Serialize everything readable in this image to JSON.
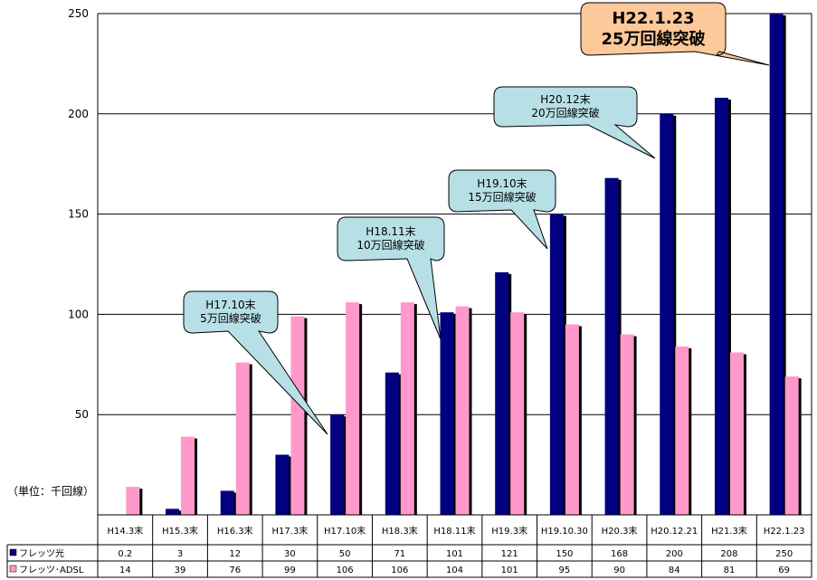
{
  "chart_data": {
    "type": "bar",
    "ylim": [
      0,
      250
    ],
    "yticks": [
      50,
      100,
      150,
      200,
      250
    ],
    "grid": true,
    "unit_label": "（単位：千回線）",
    "categories": [
      "H14.3末",
      "H15.3末",
      "H16.3末",
      "H17.3末",
      "H17.10末",
      "H18.3末",
      "H18.11末",
      "H19.3末",
      "H19.10.30",
      "H20.3末",
      "H20.12.21",
      "H21.3末",
      "H22.1.23"
    ],
    "series": [
      {
        "name": "フレッツ光",
        "color": "#000080",
        "values": [
          0.2,
          3,
          12,
          30,
          50,
          71,
          101,
          121,
          150,
          168,
          200,
          208,
          250
        ],
        "labels": [
          "0.2",
          "3",
          "12",
          "30",
          "50",
          "71",
          "101",
          "121",
          "150",
          "168",
          "200",
          "208",
          "250"
        ]
      },
      {
        "name": "フレッツ･ADSL",
        "color": "#ff99cc",
        "values": [
          14,
          39,
          76,
          99,
          106,
          106,
          104,
          101,
          95,
          90,
          84,
          81,
          69
        ],
        "labels": [
          "14",
          "39",
          "76",
          "99",
          "106",
          "106",
          "104",
          "101",
          "95",
          "90",
          "84",
          "81",
          "69"
        ]
      }
    ],
    "annotations": [
      {
        "line1": "H17.10末",
        "line2": "5万回線突破",
        "style": "small",
        "color": "#b7e0e6",
        "target_category": 4
      },
      {
        "line1": "H18.11末",
        "line2": "10万回線突破",
        "style": "small",
        "color": "#b7e0e6",
        "target_category": 6
      },
      {
        "line1": "H19.10末",
        "line2": "15万回線突破",
        "style": "small",
        "color": "#b7e0e6",
        "target_category": 8
      },
      {
        "line1": "H20.12末",
        "line2": "20万回線突破",
        "style": "small",
        "color": "#b7e0e6",
        "target_category": 10
      },
      {
        "line1": "H22.1.23",
        "line2": "25万回線突破",
        "style": "big",
        "color": "#fdc99a",
        "target_category": 12
      }
    ]
  }
}
